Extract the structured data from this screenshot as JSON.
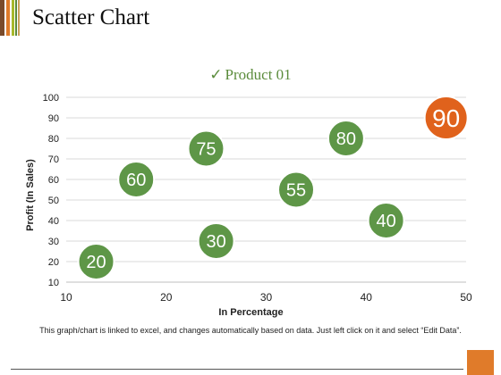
{
  "slide": {
    "title": "Scatter Chart",
    "footnote": "This graph/chart is linked to excel, and changes automatically based on data. Just left click on it and select “Edit Data”."
  },
  "colors": {
    "bubble_green": "#5e9647",
    "bubble_orange": "#e0621c",
    "legend_text": "#5b8c3c",
    "accent_bars": [
      "#7a4a2a",
      "#e07b2a",
      "#a8b92b",
      "#5c8a3a",
      "#c9a15a"
    ],
    "corner_box": "#e07b2a"
  },
  "chart_data": {
    "type": "scatter",
    "legend": {
      "label": "Product 01",
      "icon": "check-icon",
      "placement": "top-center"
    },
    "xlabel": "In Percentage",
    "ylabel": "Profit  (In Sales)",
    "xlim": [
      10,
      50
    ],
    "ylim": [
      10,
      100
    ],
    "xticks": [
      10,
      20,
      30,
      40,
      50
    ],
    "yticks": [
      10,
      20,
      30,
      40,
      50,
      60,
      70,
      80,
      90,
      100
    ],
    "grid": "horizontal",
    "points": [
      {
        "x": 13,
        "y": 20,
        "label": "20"
      },
      {
        "x": 17,
        "y": 60,
        "label": "60"
      },
      {
        "x": 24,
        "y": 75,
        "label": "75"
      },
      {
        "x": 25,
        "y": 30,
        "label": "30"
      },
      {
        "x": 33,
        "y": 55,
        "label": "55"
      },
      {
        "x": 38,
        "y": 80,
        "label": "80"
      },
      {
        "x": 42,
        "y": 40,
        "label": "40"
      },
      {
        "x": 48,
        "y": 90,
        "label": "90",
        "highlight": true
      }
    ]
  }
}
